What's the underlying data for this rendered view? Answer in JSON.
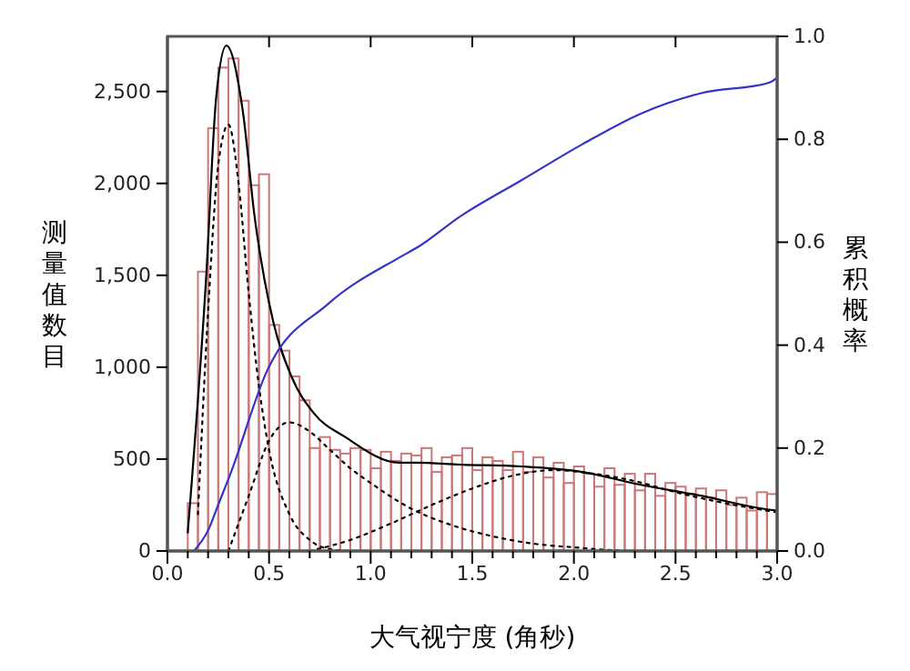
{
  "chart_data": {
    "type": "histogram",
    "xlabel": "大气视宁度 (角秒)",
    "ylabel": "测量值数目",
    "y2label": "累积概率",
    "bins": [
      0.1,
      0.15,
      0.2,
      0.25,
      0.3,
      0.35,
      0.4,
      0.45,
      0.5,
      0.55,
      0.6,
      0.65,
      0.7,
      0.75,
      0.8,
      0.85,
      0.9,
      0.95,
      1.0,
      1.05,
      1.1,
      1.15,
      1.2,
      1.25,
      1.3,
      1.35,
      1.4,
      1.45,
      1.5,
      1.55,
      1.6,
      1.65,
      1.7,
      1.75,
      1.8,
      1.85,
      1.9,
      1.95,
      2.0,
      2.05,
      2.1,
      2.15,
      2.2,
      2.25,
      2.3,
      2.35,
      2.4,
      2.45,
      2.5,
      2.55,
      2.6,
      2.65,
      2.7,
      2.75,
      2.8,
      2.85,
      2.9,
      2.95,
      3.0
    ],
    "values": [
      260,
      1520,
      2300,
      2630,
      2680,
      2450,
      1990,
      2050,
      1230,
      1090,
      950,
      820,
      560,
      620,
      550,
      530,
      560,
      550,
      450,
      540,
      490,
      530,
      520,
      560,
      430,
      510,
      520,
      560,
      440,
      510,
      490,
      440,
      540,
      430,
      510,
      400,
      480,
      370,
      460,
      420,
      350,
      450,
      360,
      420,
      330,
      420,
      300,
      370,
      350,
      310,
      340,
      290,
      330,
      250,
      290,
      220,
      320,
      310
    ],
    "color": "#cc7777",
    "series": [
      {
        "type": "line",
        "color": "#000000",
        "line_style": "solid",
        "x": [
          0.1,
          0.19,
          0.24,
          0.29,
          0.37,
          0.43,
          0.52,
          0.61,
          0.72,
          0.875,
          1.14,
          1.23,
          1.44,
          1.74,
          2.04,
          2.33,
          2.63,
          2.93,
          3.0
        ],
        "values": [
          100,
          1480,
          2470,
          2750,
          2400,
          1810,
          1250,
          950,
          750,
          620,
          480,
          480,
          470,
          460,
          430,
          360,
          300,
          230,
          220
        ]
      },
      {
        "type": "line",
        "color": "#000000",
        "line_style": "dotted",
        "x": [
          0.15,
          0.2,
          0.25,
          0.3,
          0.35,
          0.4,
          0.45,
          0.5,
          0.6,
          0.7,
          0.8,
          0.9
        ],
        "values": [
          200,
          1300,
          2100,
          2320,
          2000,
          1400,
          900,
          550,
          200,
          60,
          10,
          0
        ]
      },
      {
        "type": "line",
        "color": "#000000",
        "line_style": "dotted",
        "x": [
          0.3,
          0.4,
          0.5,
          0.6,
          0.7,
          0.8,
          0.9,
          1.0,
          1.2,
          1.4,
          1.6,
          1.8,
          2.0,
          2.3,
          2.6,
          3.0
        ],
        "values": [
          0,
          300,
          600,
          700,
          650,
          550,
          450,
          370,
          230,
          140,
          80,
          40,
          20,
          0,
          0,
          0
        ]
      },
      {
        "type": "line",
        "color": "#000000",
        "line_style": "dotted",
        "x": [
          0.7,
          0.9,
          1.1,
          1.3,
          1.5,
          1.7,
          1.9,
          2.1,
          2.3,
          2.5,
          2.7,
          3.0
        ],
        "values": [
          0,
          60,
          150,
          250,
          340,
          410,
          440,
          420,
          380,
          320,
          270,
          210
        ]
      },
      {
        "type": "line",
        "axis": "y2",
        "color": "#3333cc",
        "line_style": "solid",
        "x": [
          0.13,
          0.2,
          0.25,
          0.31,
          0.49,
          0.79,
          1.14,
          1.23,
          1.44,
          1.74,
          2.04,
          2.33,
          2.63,
          2.96,
          3.0
        ],
        "values": [
          0,
          0.04,
          0.09,
          0.15,
          0.35,
          0.48,
          0.57,
          0.59,
          0.65,
          0.72,
          0.79,
          0.85,
          0.89,
          0.91,
          0.92
        ]
      }
    ],
    "xlim": [
      0,
      3
    ],
    "xticks": [
      {
        "value": 0,
        "label": "0.0"
      },
      {
        "value": 0.1,
        "label": null
      },
      {
        "value": 0.2,
        "label": null
      },
      {
        "value": 0.3,
        "label": null
      },
      {
        "value": 0.4,
        "label": null
      },
      {
        "value": 0.5,
        "label": "0.5"
      },
      {
        "value": 0.6,
        "label": null
      },
      {
        "value": 0.7,
        "label": null
      },
      {
        "value": 0.8,
        "label": null
      },
      {
        "value": 0.9,
        "label": null
      },
      {
        "value": 1,
        "label": "1.0"
      },
      {
        "value": 1.1,
        "label": null
      },
      {
        "value": 1.2,
        "label": null
      },
      {
        "value": 1.3,
        "label": null
      },
      {
        "value": 1.4,
        "label": null
      },
      {
        "value": 1.5,
        "label": "1.5"
      },
      {
        "value": 1.6,
        "label": null
      },
      {
        "value": 1.7,
        "label": null
      },
      {
        "value": 1.8,
        "label": null
      },
      {
        "value": 1.9,
        "label": null
      },
      {
        "value": 2,
        "label": "2.0"
      },
      {
        "value": 2.1,
        "label": null
      },
      {
        "value": 2.2,
        "label": null
      },
      {
        "value": 2.3,
        "label": null
      },
      {
        "value": 2.4,
        "label": null
      },
      {
        "value": 2.5,
        "label": "2.5"
      },
      {
        "value": 2.6,
        "label": null
      },
      {
        "value": 2.7,
        "label": null
      },
      {
        "value": 2.8,
        "label": null
      },
      {
        "value": 2.9,
        "label": null
      },
      {
        "value": 3,
        "label": "3.0"
      }
    ],
    "ylim": [
      0,
      2800
    ],
    "yticks": [
      0,
      500,
      {
        "value": 1000,
        "label": "1,000"
      },
      {
        "value": 1500,
        "label": "1,500"
      },
      {
        "value": 2000,
        "label": "2,000"
      },
      {
        "value": 2500,
        "label": "2,500"
      }
    ],
    "y2lim": [
      0,
      1
    ],
    "y2ticks": [
      {
        "value": 0,
        "label": "0.0"
      },
      {
        "value": 0.2,
        "label": "0.2"
      },
      {
        "value": 0.4,
        "label": "0.4"
      },
      {
        "value": 0.6,
        "label": "0.6"
      },
      {
        "value": 0.8,
        "label": "0.8"
      },
      {
        "value": 1,
        "label": "1.0"
      }
    ]
  }
}
